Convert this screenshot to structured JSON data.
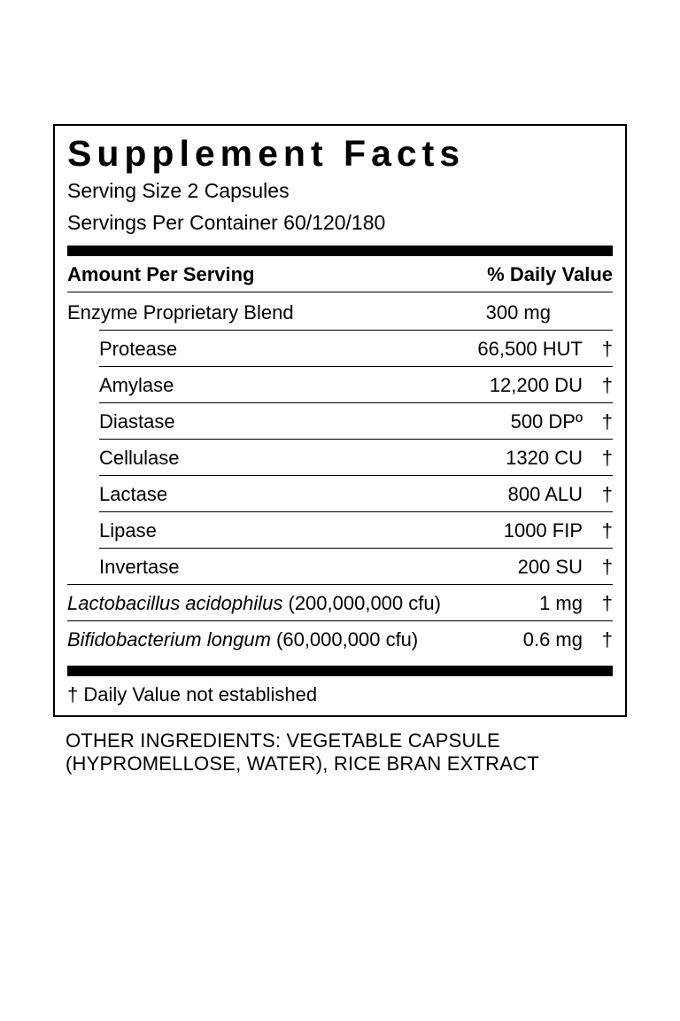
{
  "title": "Supplement Facts",
  "serving_size": "Serving Size 2 Capsules",
  "servings_per_container": "Servings Per Container 60/120/180",
  "header": {
    "left": "Amount Per Serving",
    "right": "% Daily Value"
  },
  "blend": {
    "name": "Enzyme Proprietary Blend",
    "amount": "300 mg"
  },
  "enzymes": [
    {
      "name": "Protease",
      "amount": "66,500 HUT",
      "dagger": "†"
    },
    {
      "name": "Amylase",
      "amount": "12,200 DU",
      "dagger": "†"
    },
    {
      "name": "Diastase",
      "amount": "500 DPº",
      "dagger": "†"
    },
    {
      "name": "Cellulase",
      "amount": "1320 CU",
      "dagger": "†"
    },
    {
      "name": "Lactase",
      "amount": "800 ALU",
      "dagger": "†"
    },
    {
      "name": "Lipase",
      "amount": "1000 FIP",
      "dagger": "†"
    },
    {
      "name": "Invertase",
      "amount": "200 SU",
      "dagger": "†"
    }
  ],
  "probiotics": [
    {
      "name": "Lactobacillus acidophilus",
      "cfu": " (200,000,000 cfu)",
      "amount": "1 mg",
      "dagger": "†"
    },
    {
      "name": "Bifidobacterium longum",
      "cfu": " (60,000,000 cfu)",
      "amount": "0.6 mg",
      "dagger": "†"
    }
  ],
  "footnote": "† Daily Value not established",
  "other_ingredients": "OTHER INGREDIENTS: VEGETABLE CAPSULE (HYPROMELLOSE, WATER), RICE BRAN EXTRACT"
}
